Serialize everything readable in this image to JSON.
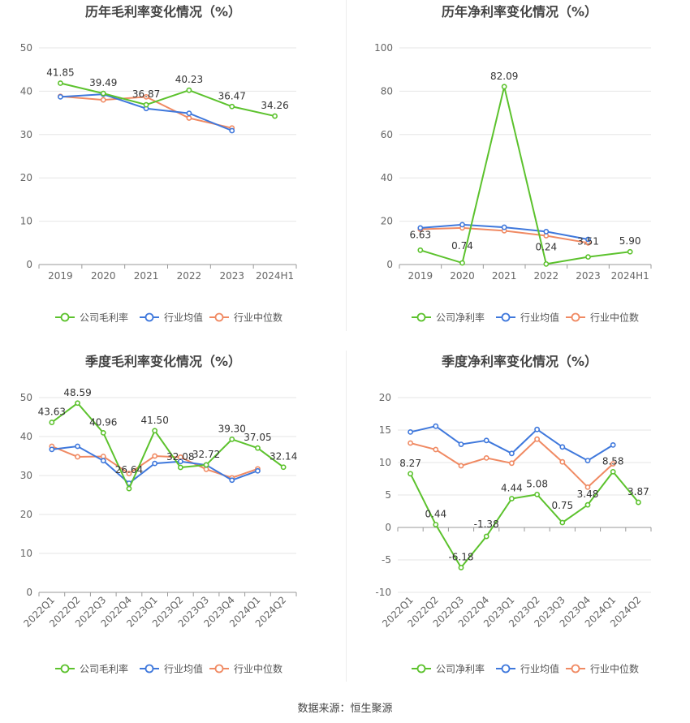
{
  "source": "数据来源：恒生聚源",
  "chart_data": [
    {
      "type": "line",
      "title": "历年毛利率变化情况（%）",
      "categories": [
        "2019",
        "2020",
        "2021",
        "2022",
        "2023",
        "2024H1"
      ],
      "ylim": [
        0,
        50
      ],
      "yticks": [
        0,
        10,
        20,
        30,
        40,
        50
      ],
      "ytick_labels": [
        "0",
        "10",
        "20",
        "30",
        "40",
        "50"
      ],
      "grid": true,
      "legend_position": "bottom",
      "series": [
        {
          "name": "公司毛利率",
          "color": "#5cc22d",
          "values": [
            41.85,
            39.49,
            36.87,
            40.23,
            36.47,
            34.26
          ],
          "labels": [
            "41.85",
            "39.49",
            "36.87",
            "40.23",
            "36.47",
            "34.26"
          ]
        },
        {
          "name": "行业均值",
          "color": "#3f78dc",
          "values": [
            38.7,
            39.3,
            36.0,
            34.9,
            30.9,
            null
          ]
        },
        {
          "name": "行业中位数",
          "color": "#f08a63",
          "values": [
            38.8,
            38.0,
            38.7,
            33.8,
            31.5,
            null
          ]
        }
      ]
    },
    {
      "type": "line",
      "title": "历年净利率变化情况（%）",
      "categories": [
        "2019",
        "2020",
        "2021",
        "2022",
        "2023",
        "2024H1"
      ],
      "ylim": [
        0,
        100
      ],
      "yticks": [
        0,
        20,
        40,
        60,
        80,
        100
      ],
      "ytick_labels": [
        "0",
        "20",
        "40",
        "60",
        "80",
        "100"
      ],
      "grid": true,
      "legend_position": "bottom",
      "series": [
        {
          "name": "公司净利率",
          "color": "#5cc22d",
          "values": [
            6.63,
            0.74,
            82.09,
            0.24,
            3.51,
            5.9
          ],
          "labels": [
            "6.63",
            "0.74",
            "82.09",
            "0.24",
            "3.51",
            "5.90"
          ]
        },
        {
          "name": "行业均值",
          "color": "#3f78dc",
          "values": [
            16.9,
            18.4,
            17.2,
            15.2,
            11.6,
            null
          ]
        },
        {
          "name": "行业中位数",
          "color": "#f08a63",
          "values": [
            16.3,
            16.9,
            15.6,
            13.3,
            10.0,
            null
          ]
        }
      ]
    },
    {
      "type": "line",
      "title": "季度毛利率变化情况（%）",
      "categories": [
        "2022Q1",
        "2022Q2",
        "2022Q3",
        "2022Q4",
        "2023Q1",
        "2023Q2",
        "2023Q3",
        "2023Q4",
        "2024Q1",
        "2024Q2"
      ],
      "ylim": [
        0,
        50
      ],
      "yticks": [
        0,
        10,
        20,
        30,
        40,
        50
      ],
      "ytick_labels": [
        "0",
        "10",
        "20",
        "30",
        "40",
        "50"
      ],
      "grid": true,
      "legend_position": "bottom",
      "series": [
        {
          "name": "公司毛利率",
          "color": "#5cc22d",
          "values": [
            43.63,
            48.59,
            40.96,
            26.64,
            41.5,
            32.08,
            32.72,
            39.3,
            37.05,
            32.14
          ],
          "labels": [
            "43.63",
            "48.59",
            "40.96",
            "26.64",
            "41.50",
            "32.08",
            "32.72",
            "39.30",
            "37.05",
            "32.14"
          ]
        },
        {
          "name": "行业均值",
          "color": "#3f78dc",
          "values": [
            36.7,
            37.5,
            33.8,
            28.0,
            33.1,
            33.6,
            32.7,
            28.8,
            31.2,
            null
          ]
        },
        {
          "name": "行业中位数",
          "color": "#f08a63",
          "values": [
            37.5,
            34.8,
            34.9,
            30.5,
            35.0,
            34.7,
            31.6,
            29.4,
            31.7,
            null
          ]
        }
      ]
    },
    {
      "type": "line",
      "title": "季度净利率变化情况（%）",
      "categories": [
        "2022Q1",
        "2022Q2",
        "2022Q3",
        "2022Q4",
        "2023Q1",
        "2023Q2",
        "2023Q3",
        "2023Q4",
        "2024Q1",
        "2024Q2"
      ],
      "ylim": [
        -10,
        20
      ],
      "yticks": [
        -10,
        -5,
        0,
        5,
        10,
        15,
        20
      ],
      "ytick_labels": [
        "-10",
        "-5",
        "0",
        "5",
        "10",
        "15",
        "20"
      ],
      "grid": true,
      "legend_position": "bottom",
      "series": [
        {
          "name": "公司净利率",
          "color": "#5cc22d",
          "values": [
            8.27,
            0.44,
            -6.18,
            -1.38,
            4.44,
            5.08,
            0.75,
            3.48,
            8.58,
            3.87
          ],
          "labels": [
            "8.27",
            "0.44",
            "-6.18",
            "-1.38",
            "4.44",
            "5.08",
            "0.75",
            "3.48",
            "8.58",
            "3.87"
          ]
        },
        {
          "name": "行业均值",
          "color": "#3f78dc",
          "values": [
            14.7,
            15.6,
            12.8,
            13.4,
            11.4,
            15.1,
            12.4,
            10.3,
            12.7,
            null
          ]
        },
        {
          "name": "行业中位数",
          "color": "#f08a63",
          "values": [
            13.0,
            12.0,
            9.5,
            10.7,
            9.9,
            13.6,
            10.1,
            6.2,
            9.8,
            null
          ]
        }
      ]
    }
  ]
}
